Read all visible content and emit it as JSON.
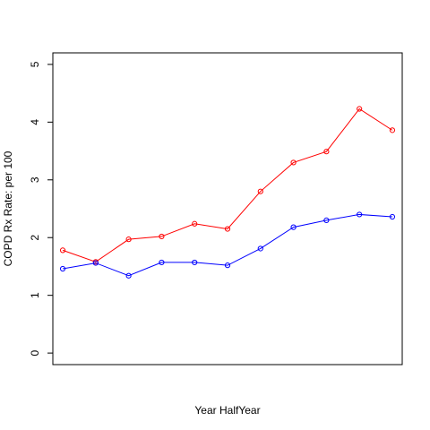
{
  "chart_data": {
    "type": "line",
    "title": "",
    "xlabel": "Year HalfYear",
    "ylabel": "COPD Rx Rate: per 100",
    "xlim": [
      0.7,
      11.3
    ],
    "ylim": [
      -0.2,
      5.2
    ],
    "yticks": [
      0,
      1,
      2,
      3,
      4,
      5
    ],
    "x": [
      1,
      2,
      3,
      4,
      5,
      6,
      7,
      8,
      9,
      10,
      11
    ],
    "grid": false,
    "legend": "none",
    "series": [
      {
        "color": "#ff0000",
        "marker": "open-circle",
        "values": [
          1.78,
          1.58,
          1.97,
          2.02,
          2.24,
          2.15,
          2.8,
          3.3,
          3.49,
          4.23,
          3.86
        ]
      },
      {
        "color": "#0000ff",
        "marker": "open-circle",
        "values": [
          1.46,
          1.56,
          1.34,
          1.57,
          1.57,
          1.52,
          1.81,
          2.18,
          2.3,
          2.4,
          2.36
        ]
      }
    ]
  }
}
